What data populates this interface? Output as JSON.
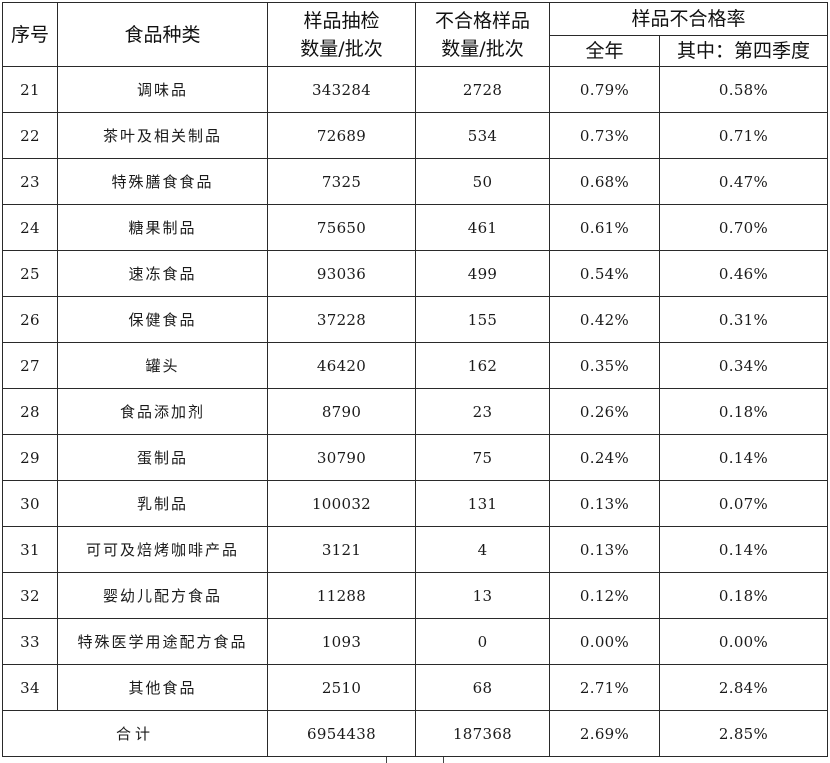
{
  "header": {
    "seq": "序号",
    "category": "食品种类",
    "sampled_line1": "样品抽检",
    "sampled_line2": "数量/批次",
    "failed_line1": "不合格样品",
    "failed_line2": "数量/批次",
    "rate_group": "样品不合格率",
    "rate_year": "全年",
    "rate_q4": "其中：第四季度"
  },
  "rows": [
    {
      "seq": "21",
      "category": "调味品",
      "sampled": "343284",
      "failed": "2728",
      "rate_year": "0.79%",
      "rate_q4": "0.58%"
    },
    {
      "seq": "22",
      "category": "茶叶及相关制品",
      "sampled": "72689",
      "failed": "534",
      "rate_year": "0.73%",
      "rate_q4": "0.71%"
    },
    {
      "seq": "23",
      "category": "特殊膳食食品",
      "sampled": "7325",
      "failed": "50",
      "rate_year": "0.68%",
      "rate_q4": "0.47%"
    },
    {
      "seq": "24",
      "category": "糖果制品",
      "sampled": "75650",
      "failed": "461",
      "rate_year": "0.61%",
      "rate_q4": "0.70%"
    },
    {
      "seq": "25",
      "category": "速冻食品",
      "sampled": "93036",
      "failed": "499",
      "rate_year": "0.54%",
      "rate_q4": "0.46%"
    },
    {
      "seq": "26",
      "category": "保健食品",
      "sampled": "37228",
      "failed": "155",
      "rate_year": "0.42%",
      "rate_q4": "0.31%"
    },
    {
      "seq": "27",
      "category": "罐头",
      "sampled": "46420",
      "failed": "162",
      "rate_year": "0.35%",
      "rate_q4": "0.34%"
    },
    {
      "seq": "28",
      "category": "食品添加剂",
      "sampled": "8790",
      "failed": "23",
      "rate_year": "0.26%",
      "rate_q4": "0.18%"
    },
    {
      "seq": "29",
      "category": "蛋制品",
      "sampled": "30790",
      "failed": "75",
      "rate_year": "0.24%",
      "rate_q4": "0.14%"
    },
    {
      "seq": "30",
      "category": "乳制品",
      "sampled": "100032",
      "failed": "131",
      "rate_year": "0.13%",
      "rate_q4": "0.07%"
    },
    {
      "seq": "31",
      "category": "可可及焙烤咖啡产品",
      "sampled": "3121",
      "failed": "4",
      "rate_year": "0.13%",
      "rate_q4": "0.14%"
    },
    {
      "seq": "32",
      "category": "婴幼儿配方食品",
      "sampled": "11288",
      "failed": "13",
      "rate_year": "0.12%",
      "rate_q4": "0.18%"
    },
    {
      "seq": "33",
      "category": "特殊医学用途配方食品",
      "sampled": "1093",
      "failed": "0",
      "rate_year": "0.00%",
      "rate_q4": "0.00%"
    },
    {
      "seq": "34",
      "category": "其他食品",
      "sampled": "2510",
      "failed": "68",
      "rate_year": "2.71%",
      "rate_q4": "2.84%"
    }
  ],
  "total": {
    "label": "合计",
    "sampled": "6954438",
    "failed": "187368",
    "rate_year": "2.69%",
    "rate_q4": "2.85%"
  }
}
